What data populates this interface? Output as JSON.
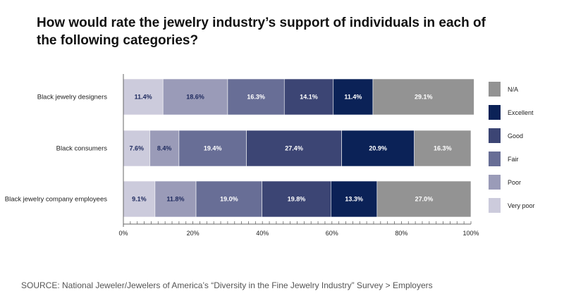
{
  "chart_data": {
    "type": "bar",
    "orientation": "horizontal",
    "stacked": true,
    "title": "How would rate the jewelry industry’s support of individuals in each of the following categories?",
    "xlabel": "",
    "ylabel": "",
    "xlim": [
      0,
      100
    ],
    "x_ticks": [
      "0%",
      "20%",
      "40%",
      "60%",
      "80%",
      "100%"
    ],
    "grid": false,
    "legend_position": "right",
    "categories": [
      "Black jewelry designers",
      "Black consumers",
      "Black jewelry company employees"
    ],
    "series": [
      {
        "name": "Very poor",
        "color": "#cccbdc",
        "label_color": "#1e2a5e",
        "values": [
          11.4,
          7.6,
          9.1
        ]
      },
      {
        "name": "Poor",
        "color": "#9a9bb8",
        "label_color": "#1e2a5e",
        "values": [
          18.6,
          8.4,
          11.8
        ]
      },
      {
        "name": "Fair",
        "color": "#686e96",
        "label_color": "#ffffff",
        "values": [
          16.3,
          19.4,
          19.0
        ]
      },
      {
        "name": "Good",
        "color": "#3c4574",
        "label_color": "#ffffff",
        "values": [
          14.1,
          27.4,
          19.8
        ]
      },
      {
        "name": "Excellent",
        "color": "#0b2257",
        "label_color": "#ffffff",
        "values": [
          11.4,
          20.9,
          13.3
        ]
      },
      {
        "name": "N/A",
        "color": "#939393",
        "label_color": "#ffffff",
        "values": [
          29.1,
          16.3,
          27.0
        ]
      }
    ],
    "legend_order": [
      "N/A",
      "Excellent",
      "Good",
      "Fair",
      "Poor",
      "Very poor"
    ]
  },
  "source": "SOURCE: National Jeweler/Jewelers of America’s “Diversity in the Fine Jewelry Industry” Survey > Employers"
}
